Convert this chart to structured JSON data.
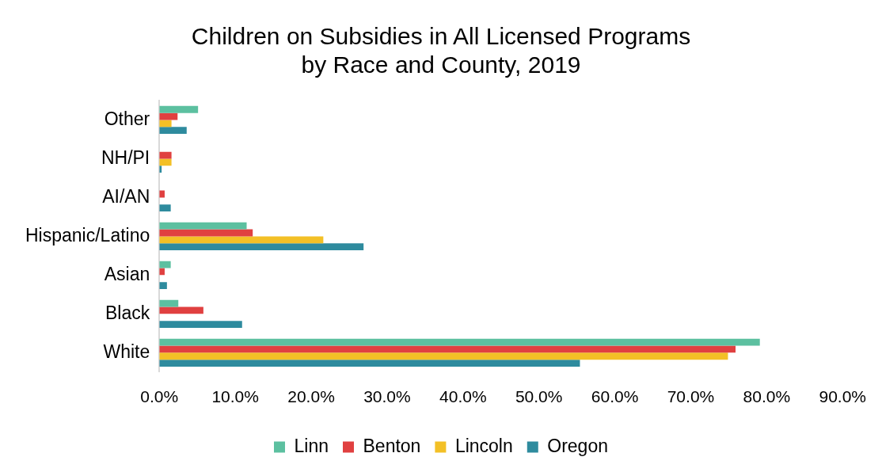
{
  "chart_data": {
    "type": "bar",
    "orientation": "horizontal",
    "title": "Children on Subsidies in All Licensed Programs\nby Race and County, 2019",
    "categories": [
      "Other",
      "NH/PI",
      "AI/AN",
      "Hispanic/Latino",
      "Asian",
      "Black",
      "White"
    ],
    "series": [
      {
        "name": "Linn",
        "color": "#5cc0a0",
        "values": [
          5.1,
          0,
          0,
          11.5,
          1.5,
          2.5,
          79.1
        ]
      },
      {
        "name": "Benton",
        "color": "#e04040",
        "values": [
          2.4,
          1.6,
          0.7,
          12.3,
          0.7,
          5.8,
          75.9
        ]
      },
      {
        "name": "Lincoln",
        "color": "#f3c026",
        "values": [
          1.6,
          1.6,
          0,
          21.6,
          0,
          0,
          74.9
        ]
      },
      {
        "name": "Oregon",
        "color": "#2e8b9e",
        "values": [
          3.6,
          0.3,
          1.5,
          26.9,
          1.0,
          10.9,
          55.4
        ]
      }
    ],
    "xlim": [
      0,
      90
    ],
    "xticks": [
      {
        "value": 0,
        "label": "0.0%"
      },
      {
        "value": 10,
        "label": "10.0%"
      },
      {
        "value": 20,
        "label": "20.0%"
      },
      {
        "value": 30,
        "label": "30.0%"
      },
      {
        "value": 40,
        "label": "40.0%"
      },
      {
        "value": 50,
        "label": "50.0%"
      },
      {
        "value": 60,
        "label": "60.0%"
      },
      {
        "value": 70,
        "label": "70.0%"
      },
      {
        "value": 80,
        "label": "80.0%"
      },
      {
        "value": 90,
        "label": "90.0%"
      }
    ],
    "grid": false,
    "legend": "bottom"
  }
}
